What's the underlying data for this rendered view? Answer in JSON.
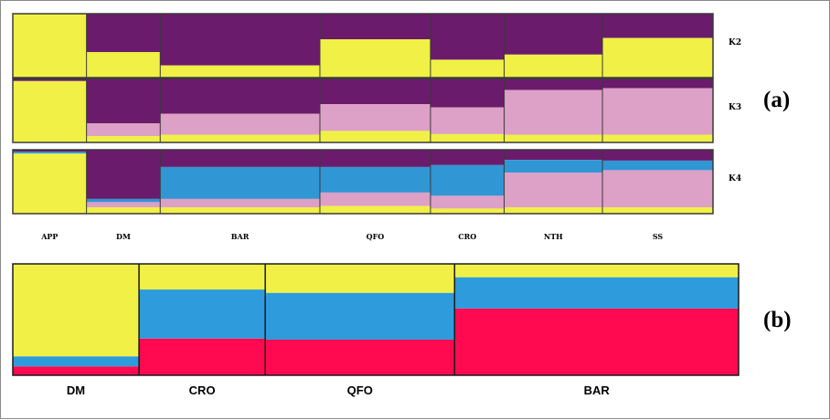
{
  "chart_data": [
    {
      "type": "stacked-bar-100",
      "panel_label": "(a)",
      "populations": [
        {
          "name": "APP",
          "n": 6
        },
        {
          "name": "DM",
          "n": 6
        },
        {
          "name": "BAR",
          "n": 13
        },
        {
          "name": "QFO",
          "n": 9
        },
        {
          "name": "CRO",
          "n": 6
        },
        {
          "name": "NTH",
          "n": 8
        },
        {
          "name": "SS",
          "n": 9
        }
      ],
      "rows": [
        {
          "k_label": "K2",
          "cluster_colors": [
            "#6b1b6b",
            "#f0f046"
          ],
          "proportions": [
            [
              0.0,
              1.0
            ],
            [
              0.6,
              0.4
            ],
            [
              0.81,
              0.19
            ],
            [
              0.4,
              0.6
            ],
            [
              0.72,
              0.28
            ],
            [
              0.64,
              0.36
            ],
            [
              0.38,
              0.62
            ]
          ]
        },
        {
          "k_label": "K3",
          "cluster_colors": [
            "#6b1b6b",
            "#dda0c6",
            "#f0f046"
          ],
          "proportions": [
            [
              0.04,
              0.0,
              0.96
            ],
            [
              0.7,
              0.2,
              0.1
            ],
            [
              0.55,
              0.33,
              0.12
            ],
            [
              0.4,
              0.42,
              0.18
            ],
            [
              0.45,
              0.42,
              0.13
            ],
            [
              0.18,
              0.7,
              0.12
            ],
            [
              0.15,
              0.73,
              0.12
            ]
          ]
        },
        {
          "k_label": "K4",
          "cluster_colors": [
            "#6b1b6b",
            "#3196d4",
            "#dda0c6",
            "#f0f046"
          ],
          "proportions": [
            [
              0.03,
              0.03,
              0.0,
              0.94
            ],
            [
              0.77,
              0.05,
              0.08,
              0.1
            ],
            [
              0.27,
              0.5,
              0.13,
              0.1
            ],
            [
              0.27,
              0.4,
              0.21,
              0.12
            ],
            [
              0.24,
              0.48,
              0.2,
              0.08
            ],
            [
              0.16,
              0.2,
              0.54,
              0.1
            ],
            [
              0.17,
              0.15,
              0.58,
              0.1
            ]
          ]
        }
      ]
    },
    {
      "type": "stacked-bar-100",
      "panel_label": "(b)",
      "populations": [
        {
          "name": "DM",
          "n": 4
        },
        {
          "name": "CRO",
          "n": 4
        },
        {
          "name": "QFO",
          "n": 6
        },
        {
          "name": "BAR",
          "n": 9
        }
      ],
      "cluster_colors": [
        "#ff0a50",
        "#2d9bdc",
        "#f0f046"
      ],
      "proportions": [
        [
          0.08,
          0.09,
          0.83
        ],
        [
          0.33,
          0.44,
          0.23
        ],
        [
          0.32,
          0.42,
          0.26
        ],
        [
          0.6,
          0.28,
          0.12
        ]
      ]
    }
  ]
}
